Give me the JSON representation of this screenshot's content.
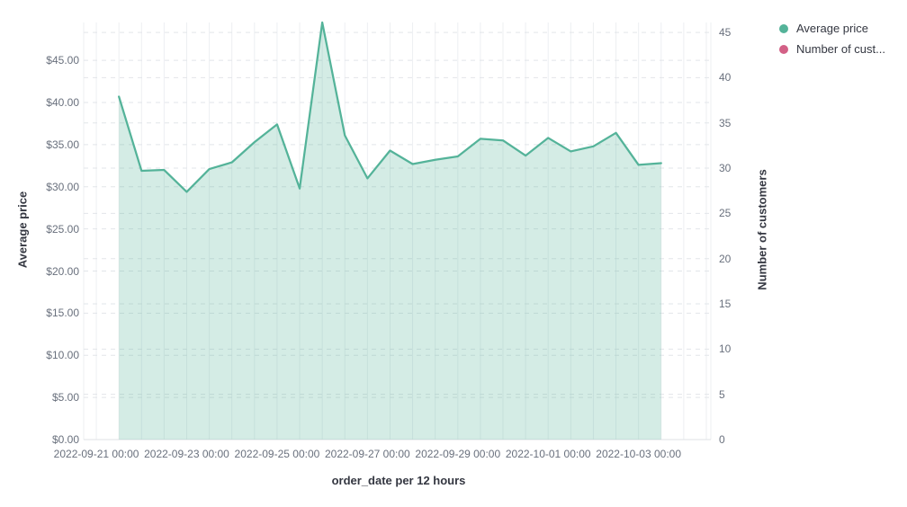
{
  "chart_data": {
    "type": "area",
    "title": "",
    "xlabel": "order_date per 12 hours",
    "ylabel_left": "Average price",
    "ylabel_right": "Number of customers",
    "x": [
      "2022-09-21 12:00",
      "2022-09-22 00:00",
      "2022-09-22 12:00",
      "2022-09-23 00:00",
      "2022-09-23 12:00",
      "2022-09-24 00:00",
      "2022-09-24 12:00",
      "2022-09-25 00:00",
      "2022-09-25 12:00",
      "2022-09-26 00:00",
      "2022-09-26 12:00",
      "2022-09-27 00:00",
      "2022-09-27 12:00",
      "2022-09-28 00:00",
      "2022-09-28 12:00",
      "2022-09-29 00:00",
      "2022-09-29 12:00",
      "2022-09-30 00:00",
      "2022-09-30 12:00",
      "2022-10-01 00:00",
      "2022-10-01 12:00",
      "2022-10-02 00:00",
      "2022-10-02 12:00",
      "2022-10-03 00:00",
      "2022-10-03 12:00"
    ],
    "series": [
      {
        "name": "Average price",
        "axis": "left",
        "color": "#54b399",
        "fill_opacity": 0.25,
        "values": [
          40.7,
          31.9,
          32.0,
          29.4,
          32.1,
          32.9,
          35.3,
          37.4,
          29.8,
          49.5,
          36.1,
          31.0,
          34.3,
          32.7,
          33.2,
          33.6,
          35.7,
          35.5,
          33.7,
          35.8,
          34.2,
          34.8,
          36.4,
          32.6,
          32.8
        ]
      },
      {
        "name": "Number of customers",
        "axis": "right",
        "color": "#d36086",
        "values": []
      }
    ],
    "left_axis": {
      "tick_labels": [
        "$0.00",
        "$5.00",
        "$10.00",
        "$15.00",
        "$20.00",
        "$25.00",
        "$30.00",
        "$35.00",
        "$40.00",
        "$45.00"
      ],
      "tick_values": [
        0,
        5,
        10,
        15,
        20,
        25,
        30,
        35,
        40,
        45
      ],
      "domain": [
        0,
        49.5
      ]
    },
    "right_axis": {
      "tick_labels": [
        "0",
        "5",
        "10",
        "15",
        "20",
        "25",
        "30",
        "35",
        "40",
        "45"
      ],
      "tick_values": [
        0,
        5,
        10,
        15,
        20,
        25,
        30,
        35,
        40,
        45
      ],
      "domain": [
        0,
        46.1
      ]
    },
    "x_axis": {
      "tick_labels": [
        "2022-09-21 00:00",
        "2022-09-23 00:00",
        "2022-09-25 00:00",
        "2022-09-27 00:00",
        "2022-09-29 00:00",
        "2022-10-01 00:00",
        "2022-10-03 00:00"
      ],
      "tick_intervals": [
        0,
        4,
        8,
        12,
        16,
        20,
        24
      ],
      "domain_intervals": [
        -0.56,
        27.2
      ],
      "gridline_intervals_max": 27,
      "point_interval_offset": 1
    },
    "grid": true,
    "legend_position": "top-right"
  },
  "legend": {
    "items": [
      {
        "label": "Average price",
        "color": "#54b399"
      },
      {
        "label": "Number of cust...",
        "color": "#d36086"
      }
    ]
  },
  "colors": {
    "line": "#54b399",
    "area_fill": "rgba(84,179,153,0.25)",
    "v_gridline": "#edeff2",
    "h_gridline": "#e2e5e9",
    "baseline": "#dfe2e6",
    "tick_text": "#69707d",
    "title_text": "#343741"
  }
}
